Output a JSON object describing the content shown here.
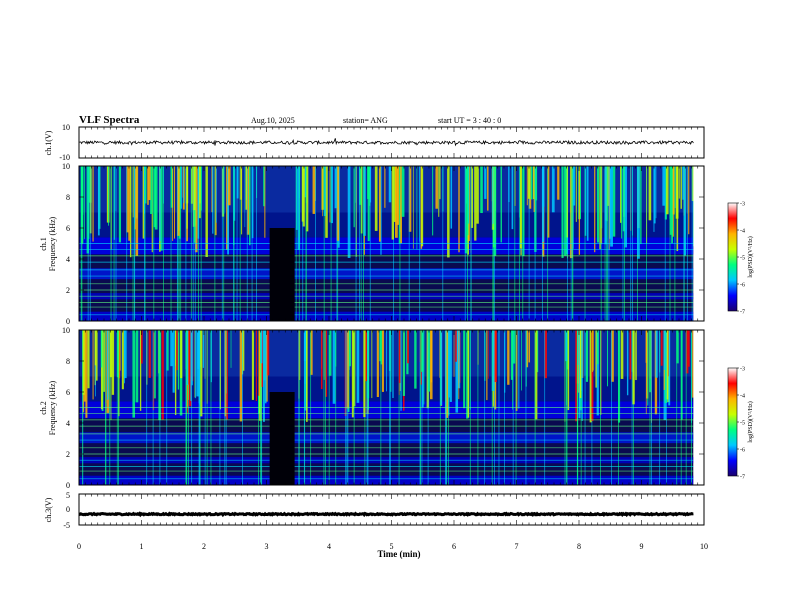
{
  "header": {
    "title": "VLF Spectra",
    "date": "Aug.10, 2025",
    "station": "station= ANG",
    "start": "start  UT =   3  : 40 : 0"
  },
  "colormap": [
    "#1a006e",
    "#0000ff",
    "#00c8ff",
    "#00ff80",
    "#c8ff00",
    "#ffb400",
    "#ff0000",
    "#ffffff"
  ],
  "chart_data": [
    {
      "type": "line",
      "ylabel": "ch.1(V)",
      "xlim": [
        0,
        10
      ],
      "ylim": [
        -10,
        10
      ],
      "yticks": [
        10,
        -10
      ],
      "waveform_baseline": 0,
      "waveform_amplitude": 1
    },
    {
      "type": "heatmap",
      "ylabel": "ch.1\nFrequency (kHz)",
      "xlim": [
        0,
        10
      ],
      "ylim": [
        0,
        10
      ],
      "data_end_min": 9.83,
      "yticks": [
        0,
        2,
        4,
        6,
        8,
        10
      ],
      "colorbar": {
        "label": "log(PSD)(V²/Hz)",
        "range": [
          -7,
          -3
        ],
        "ticks": [
          -3,
          -4,
          -5,
          -6,
          -7
        ]
      },
      "gap_minutes": [
        3.05,
        3.45
      ]
    },
    {
      "type": "heatmap",
      "ylabel": "ch.2\nFrequency (kHz)",
      "xlim": [
        0,
        10
      ],
      "ylim": [
        0,
        10
      ],
      "data_end_min": 9.83,
      "yticks": [
        0,
        2,
        4,
        6,
        8,
        10
      ],
      "colorbar": {
        "label": "log(PSD)(V²/Hz)",
        "range": [
          -7,
          -3
        ],
        "ticks": [
          -3,
          -4,
          -5,
          -6,
          -7
        ]
      },
      "gap_minutes": [
        3.05,
        3.45
      ]
    },
    {
      "type": "line",
      "ylabel": "ch.3(V)",
      "xlim": [
        0,
        10
      ],
      "ylim": [
        -5,
        5
      ],
      "yticks": [
        5,
        0,
        -5
      ],
      "waveform_baseline": -1.5,
      "waveform_amplitude": 0.2
    }
  ],
  "xaxis": {
    "label": "Time (min)",
    "ticks": [
      "0",
      "1",
      "2",
      "3",
      "4",
      "5",
      "6",
      "7",
      "8",
      "9",
      "10"
    ]
  }
}
